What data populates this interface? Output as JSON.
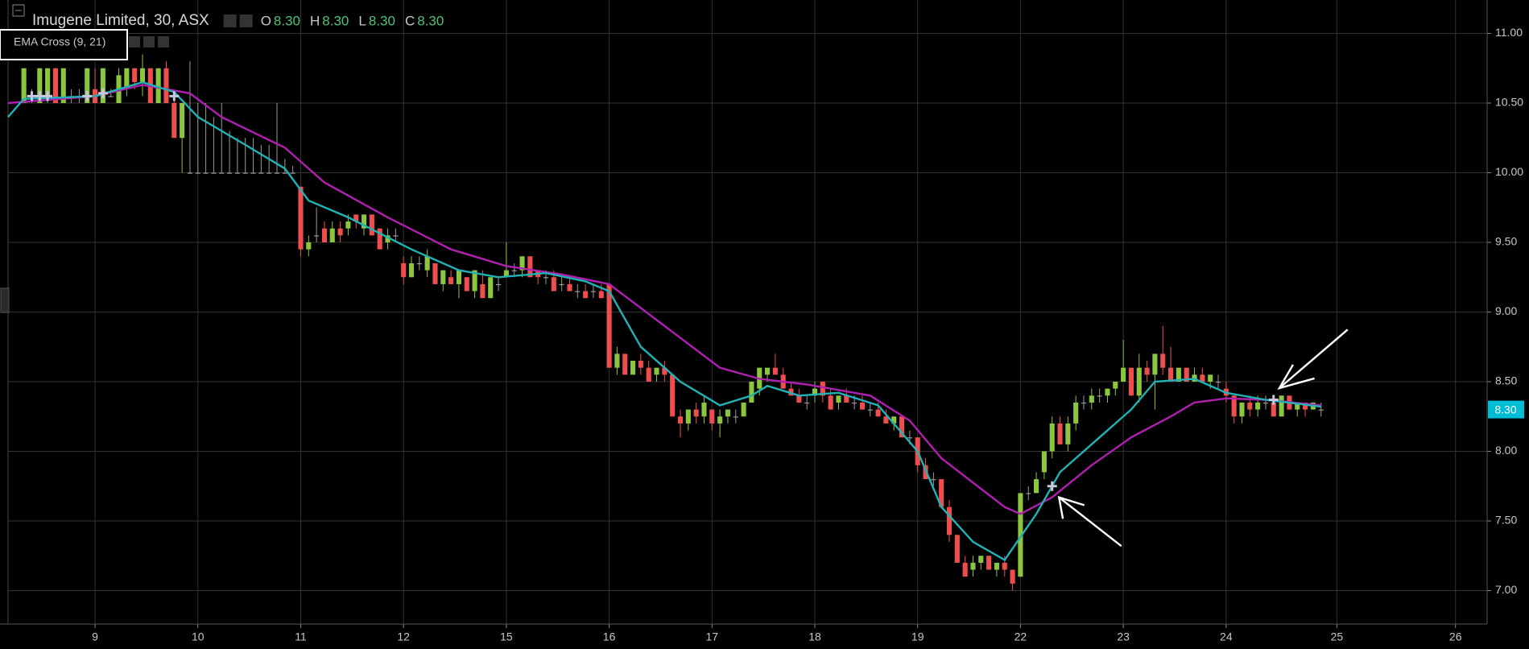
{
  "chart_data": {
    "type": "candlestick",
    "title": "Imugene Limited, 30, ASX",
    "indicator": "EMA Cross (9, 21)",
    "quote": {
      "labels": [
        "O",
        "H",
        "L",
        "C"
      ],
      "values": [
        8.3,
        8.3,
        8.3,
        8.3
      ],
      "value_labels": [
        "8.30",
        "8.30",
        "8.30",
        "8.30"
      ]
    },
    "last_price": 8.3,
    "last_price_label": "8.30",
    "up_color": "#8cc63f",
    "down_color": "#ef4e4e",
    "flat_color": "#9a9a9a",
    "xlim": [
      -11,
      176
    ],
    "ylim": [
      6.76,
      11.24
    ],
    "grid": true,
    "xticks": [
      {
        "value": 0,
        "label": "9"
      },
      {
        "value": 13,
        "label": "10"
      },
      {
        "value": 26,
        "label": "11"
      },
      {
        "value": 39,
        "label": "12"
      },
      {
        "value": 52,
        "label": "15"
      },
      {
        "value": 65,
        "label": "16"
      },
      {
        "value": 78,
        "label": "17"
      },
      {
        "value": 91,
        "label": "18"
      },
      {
        "value": 104,
        "label": "19"
      },
      {
        "value": 117,
        "label": "22"
      },
      {
        "value": 130,
        "label": "23"
      },
      {
        "value": 143,
        "label": "24"
      },
      {
        "value": 157,
        "label": "25"
      },
      {
        "value": 172,
        "label": "26"
      }
    ],
    "yticks": [
      {
        "value": 7,
        "label": "7.00"
      },
      {
        "value": 7.5,
        "label": "7.50"
      },
      {
        "value": 8,
        "label": "8.00"
      },
      {
        "value": 8.5,
        "label": "8.50"
      },
      {
        "value": 9,
        "label": "9.00"
      },
      {
        "value": 9.5,
        "label": "9.50"
      },
      {
        "value": 10,
        "label": "10.00"
      },
      {
        "value": 10.5,
        "label": "10.50"
      },
      {
        "value": 11,
        "label": "11.00"
      }
    ],
    "x": [
      -9,
      -8,
      -7,
      -6,
      -5,
      -4,
      -3,
      -2,
      -1,
      0,
      1,
      2,
      3,
      4,
      5,
      6,
      7,
      8,
      9,
      10,
      11,
      12,
      13,
      14,
      15,
      16,
      17,
      18,
      19,
      20,
      21,
      22,
      23,
      24,
      25,
      26,
      27,
      28,
      29,
      30,
      31,
      32,
      33,
      34,
      35,
      36,
      37,
      38,
      39,
      40,
      41,
      42,
      43,
      44,
      45,
      46,
      47,
      48,
      49,
      50,
      51,
      52,
      53,
      54,
      55,
      56,
      57,
      58,
      59,
      60,
      61,
      62,
      63,
      64,
      65,
      66,
      67,
      68,
      69,
      70,
      71,
      72,
      73,
      74,
      75,
      76,
      77,
      78,
      79,
      80,
      81,
      82,
      83,
      84,
      85,
      86,
      87,
      88,
      89,
      90,
      91,
      92,
      93,
      94,
      95,
      96,
      97,
      98,
      99,
      100,
      101,
      102,
      103,
      104,
      105,
      106,
      107,
      108,
      109,
      110,
      111,
      112,
      113,
      114,
      115,
      116,
      117,
      118,
      119,
      120,
      121,
      122,
      123,
      124,
      125,
      126,
      127,
      128,
      129,
      130,
      131,
      132,
      133,
      134,
      135,
      136,
      137,
      138,
      139,
      140,
      141,
      142,
      143,
      144,
      145,
      146,
      147,
      148,
      149,
      150,
      151,
      152,
      153,
      154,
      155
    ],
    "candles": [
      [
        10.5,
        10.75,
        10.5,
        10.75
      ],
      [
        10.55,
        10.6,
        10.5,
        10.55
      ],
      [
        10.5,
        10.75,
        10.5,
        10.75
      ],
      [
        10.55,
        10.75,
        10.5,
        10.75
      ],
      [
        10.75,
        10.75,
        10.5,
        10.5
      ],
      [
        10.5,
        10.75,
        10.5,
        10.75
      ],
      [
        10.55,
        10.6,
        10.5,
        10.55
      ],
      [
        10.55,
        10.6,
        10.5,
        10.55
      ],
      [
        10.5,
        10.75,
        10.5,
        10.75
      ],
      [
        10.6,
        10.75,
        10.5,
        10.5
      ],
      [
        10.5,
        10.75,
        10.5,
        10.75
      ],
      [
        10.55,
        10.6,
        10.55,
        10.55
      ],
      [
        10.5,
        10.75,
        10.5,
        10.7
      ],
      [
        10.6,
        10.75,
        10.55,
        10.75
      ],
      [
        10.75,
        10.75,
        10.6,
        10.65
      ],
      [
        10.65,
        10.85,
        10.55,
        10.75
      ],
      [
        10.75,
        10.75,
        10.5,
        10.5
      ],
      [
        10.5,
        10.75,
        10.5,
        10.75
      ],
      [
        10.75,
        10.8,
        10.5,
        10.5
      ],
      [
        10.5,
        10.55,
        10.25,
        10.25
      ],
      [
        10.25,
        10.5,
        10.0,
        10.5
      ],
      [
        10.0,
        10.8,
        10.0,
        10.0
      ],
      [
        10.0,
        10.5,
        10.0,
        10.0
      ],
      [
        10.0,
        10.5,
        10.0,
        10.0
      ],
      [
        10.0,
        10.4,
        10.0,
        10.0
      ],
      [
        10.0,
        10.5,
        10.0,
        10.0
      ],
      [
        10.0,
        10.3,
        10.0,
        10.0
      ],
      [
        10.0,
        10.25,
        10.0,
        10.0
      ],
      [
        10.0,
        10.25,
        10.0,
        10.0
      ],
      [
        10.0,
        10.25,
        10.0,
        10.0
      ],
      [
        10.0,
        10.2,
        10.0,
        10.0
      ],
      [
        10.0,
        10.2,
        10.0,
        10.0
      ],
      [
        10.0,
        10.5,
        10.0,
        10.0
      ],
      [
        10.0,
        10.1,
        10.0,
        10.0
      ],
      [
        10.0,
        10.05,
        10.0,
        10.0
      ],
      [
        9.9,
        9.9,
        9.4,
        9.45
      ],
      [
        9.45,
        9.55,
        9.4,
        9.5
      ],
      [
        9.55,
        9.75,
        9.5,
        9.55
      ],
      [
        9.6,
        9.65,
        9.5,
        9.5
      ],
      [
        9.5,
        9.65,
        9.5,
        9.6
      ],
      [
        9.6,
        9.65,
        9.5,
        9.55
      ],
      [
        9.6,
        9.7,
        9.55,
        9.65
      ],
      [
        9.7,
        9.7,
        9.6,
        9.65
      ],
      [
        9.6,
        9.7,
        9.55,
        9.7
      ],
      [
        9.7,
        9.7,
        9.55,
        9.55
      ],
      [
        9.6,
        9.6,
        9.45,
        9.45
      ],
      [
        9.5,
        9.6,
        9.45,
        9.55
      ],
      [
        9.55,
        9.6,
        9.5,
        9.55
      ],
      [
        9.35,
        9.4,
        9.2,
        9.25
      ],
      [
        9.25,
        9.4,
        9.25,
        9.35
      ],
      [
        9.35,
        9.4,
        9.3,
        9.35
      ],
      [
        9.3,
        9.45,
        9.25,
        9.4
      ],
      [
        9.35,
        9.35,
        9.2,
        9.2
      ],
      [
        9.2,
        9.3,
        9.15,
        9.3
      ],
      [
        9.25,
        9.3,
        9.2,
        9.2
      ],
      [
        9.2,
        9.3,
        9.1,
        9.3
      ],
      [
        9.25,
        9.25,
        9.15,
        9.15
      ],
      [
        9.15,
        9.3,
        9.1,
        9.3
      ],
      [
        9.2,
        9.3,
        9.1,
        9.1
      ],
      [
        9.1,
        9.25,
        9.1,
        9.25
      ],
      [
        9.2,
        9.25,
        9.15,
        9.2
      ],
      [
        9.25,
        9.5,
        9.25,
        9.3
      ],
      [
        9.3,
        9.35,
        9.25,
        9.3
      ],
      [
        9.3,
        9.4,
        9.25,
        9.4
      ],
      [
        9.4,
        9.4,
        9.25,
        9.25
      ],
      [
        9.3,
        9.3,
        9.2,
        9.25
      ],
      [
        9.25,
        9.3,
        9.2,
        9.25
      ],
      [
        9.25,
        9.3,
        9.15,
        9.15
      ],
      [
        9.2,
        9.25,
        9.15,
        9.2
      ],
      [
        9.2,
        9.25,
        9.15,
        9.15
      ],
      [
        9.15,
        9.2,
        9.1,
        9.15
      ],
      [
        9.15,
        9.2,
        9.1,
        9.1
      ],
      [
        9.15,
        9.2,
        9.1,
        9.15
      ],
      [
        9.15,
        9.2,
        9.1,
        9.1
      ],
      [
        9.2,
        9.2,
        8.6,
        8.6
      ],
      [
        8.6,
        8.75,
        8.55,
        8.7
      ],
      [
        8.7,
        8.7,
        8.55,
        8.55
      ],
      [
        8.55,
        8.65,
        8.55,
        8.65
      ],
      [
        8.65,
        8.7,
        8.55,
        8.6
      ],
      [
        8.6,
        8.65,
        8.5,
        8.5
      ],
      [
        8.55,
        8.6,
        8.5,
        8.6
      ],
      [
        8.6,
        8.65,
        8.5,
        8.55
      ],
      [
        8.55,
        8.55,
        8.25,
        8.25
      ],
      [
        8.25,
        8.3,
        8.1,
        8.2
      ],
      [
        8.2,
        8.3,
        8.15,
        8.3
      ],
      [
        8.3,
        8.35,
        8.2,
        8.25
      ],
      [
        8.25,
        8.4,
        8.2,
        8.35
      ],
      [
        8.3,
        8.3,
        8.15,
        8.2
      ],
      [
        8.2,
        8.3,
        8.1,
        8.25
      ],
      [
        8.25,
        8.3,
        8.2,
        8.3
      ],
      [
        8.25,
        8.3,
        8.2,
        8.25
      ],
      [
        8.25,
        8.35,
        8.25,
        8.35
      ],
      [
        8.35,
        8.5,
        8.35,
        8.5
      ],
      [
        8.45,
        8.6,
        8.4,
        8.6
      ],
      [
        8.55,
        8.6,
        8.5,
        8.6
      ],
      [
        8.6,
        8.7,
        8.55,
        8.55
      ],
      [
        8.55,
        8.6,
        8.45,
        8.45
      ],
      [
        8.45,
        8.5,
        8.4,
        8.4
      ],
      [
        8.4,
        8.45,
        8.35,
        8.35
      ],
      [
        8.35,
        8.4,
        8.3,
        8.35
      ],
      [
        8.4,
        8.5,
        8.35,
        8.45
      ],
      [
        8.5,
        8.5,
        8.35,
        8.4
      ],
      [
        8.4,
        8.45,
        8.3,
        8.3
      ],
      [
        8.35,
        8.4,
        8.3,
        8.4
      ],
      [
        8.4,
        8.45,
        8.35,
        8.35
      ],
      [
        8.35,
        8.4,
        8.3,
        8.35
      ],
      [
        8.35,
        8.4,
        8.3,
        8.3
      ],
      [
        8.3,
        8.35,
        8.25,
        8.3
      ],
      [
        8.3,
        8.35,
        8.25,
        8.25
      ],
      [
        8.25,
        8.3,
        8.2,
        8.2
      ],
      [
        8.2,
        8.25,
        8.15,
        8.25
      ],
      [
        8.25,
        8.25,
        8.1,
        8.1
      ],
      [
        8.1,
        8.15,
        8.05,
        8.1
      ],
      [
        8.1,
        8.1,
        7.85,
        7.9
      ],
      [
        7.9,
        7.95,
        7.8,
        7.8
      ],
      [
        7.8,
        7.85,
        7.75,
        7.8
      ],
      [
        7.8,
        7.8,
        7.6,
        7.6
      ],
      [
        7.6,
        7.65,
        7.35,
        7.4
      ],
      [
        7.4,
        7.4,
        7.2,
        7.2
      ],
      [
        7.2,
        7.25,
        7.1,
        7.1
      ],
      [
        7.15,
        7.25,
        7.1,
        7.2
      ],
      [
        7.2,
        7.25,
        7.15,
        7.25
      ],
      [
        7.25,
        7.25,
        7.15,
        7.15
      ],
      [
        7.15,
        7.2,
        7.1,
        7.2
      ],
      [
        7.2,
        7.25,
        7.1,
        7.15
      ],
      [
        7.15,
        7.15,
        7.0,
        7.05
      ],
      [
        7.1,
        7.7,
        7.1,
        7.7
      ],
      [
        7.7,
        7.75,
        7.65,
        7.7
      ],
      [
        7.7,
        7.85,
        7.7,
        7.8
      ],
      [
        7.85,
        8.0,
        7.8,
        8.0
      ],
      [
        8.0,
        8.25,
        7.95,
        8.2
      ],
      [
        8.2,
        8.25,
        8.05,
        8.05
      ],
      [
        8.05,
        8.25,
        8.0,
        8.2
      ],
      [
        8.2,
        8.4,
        8.15,
        8.35
      ],
      [
        8.35,
        8.4,
        8.3,
        8.35
      ],
      [
        8.35,
        8.45,
        8.3,
        8.4
      ],
      [
        8.4,
        8.45,
        8.35,
        8.4
      ],
      [
        8.4,
        8.45,
        8.35,
        8.45
      ],
      [
        8.45,
        8.5,
        8.4,
        8.5
      ],
      [
        8.5,
        8.8,
        8.5,
        8.6
      ],
      [
        8.6,
        8.6,
        8.4,
        8.4
      ],
      [
        8.4,
        8.7,
        8.35,
        8.6
      ],
      [
        8.6,
        8.65,
        8.5,
        8.55
      ],
      [
        8.55,
        8.7,
        8.3,
        8.7
      ],
      [
        8.7,
        8.9,
        8.55,
        8.6
      ],
      [
        8.6,
        8.75,
        8.5,
        8.5
      ],
      [
        8.5,
        8.6,
        8.5,
        8.6
      ],
      [
        8.6,
        8.6,
        8.5,
        8.5
      ],
      [
        8.5,
        8.6,
        8.5,
        8.55
      ],
      [
        8.55,
        8.6,
        8.5,
        8.5
      ],
      [
        8.5,
        8.55,
        8.45,
        8.55
      ],
      [
        8.5,
        8.55,
        8.45,
        8.5
      ],
      [
        8.45,
        8.5,
        8.35,
        8.4
      ],
      [
        8.4,
        8.4,
        8.2,
        8.25
      ],
      [
        8.25,
        8.35,
        8.2,
        8.35
      ],
      [
        8.35,
        8.4,
        8.25,
        8.3
      ],
      [
        8.3,
        8.4,
        8.25,
        8.35
      ],
      [
        8.35,
        8.4,
        8.3,
        8.35
      ],
      [
        8.35,
        8.4,
        8.25,
        8.25
      ],
      [
        8.25,
        8.4,
        8.25,
        8.4
      ],
      [
        8.4,
        8.4,
        8.3,
        8.3
      ],
      [
        8.3,
        8.35,
        8.25,
        8.35
      ],
      [
        8.35,
        8.35,
        8.25,
        8.3
      ],
      [
        8.3,
        8.35,
        8.3,
        8.35
      ],
      [
        8.3,
        8.35,
        8.25,
        8.3
      ]
    ],
    "series": [
      {
        "color": "#b01fb0",
        "x": [
          -11,
          0,
          6,
          12,
          16,
          24,
          29,
          37,
          45,
          52,
          59,
          65,
          72,
          79,
          84,
          90,
          98,
          103,
          107,
          115,
          117,
          121,
          126,
          131,
          136,
          139,
          143,
          148,
          155
        ],
        "values": [
          10.5,
          10.55,
          10.63,
          10.57,
          10.4,
          10.18,
          9.93,
          9.68,
          9.45,
          9.33,
          9.27,
          9.2,
          8.9,
          8.6,
          8.52,
          8.48,
          8.4,
          8.22,
          7.95,
          7.6,
          7.55,
          7.67,
          7.9,
          8.1,
          8.25,
          8.35,
          8.38,
          8.37,
          8.33
        ]
      },
      {
        "color": "#20b2b4",
        "x": [
          -11,
          -9,
          0,
          6,
          10,
          13,
          19,
          24,
          27,
          32,
          40,
          46,
          51,
          57,
          62,
          65,
          69,
          74,
          79,
          83,
          85,
          89,
          94,
          99,
          104,
          107,
          111,
          115,
          119,
          122,
          127,
          131,
          134,
          139,
          143,
          148,
          155
        ],
        "values": [
          10.4,
          10.53,
          10.55,
          10.65,
          10.58,
          10.4,
          10.2,
          10.03,
          9.8,
          9.68,
          9.45,
          9.3,
          9.25,
          9.28,
          9.22,
          9.15,
          8.75,
          8.5,
          8.33,
          8.4,
          8.47,
          8.4,
          8.42,
          8.33,
          8.0,
          7.6,
          7.35,
          7.22,
          7.55,
          7.85,
          8.1,
          8.3,
          8.5,
          8.52,
          8.42,
          8.37,
          8.32
        ]
      }
    ],
    "crosses": {
      "color": "#c8c8e0",
      "x": [
        -8,
        -7,
        -6,
        -1,
        1,
        10,
        121,
        149
      ],
      "values": [
        10.55,
        10.55,
        10.55,
        10.55,
        10.57,
        10.55,
        7.75,
        8.37
      ]
    }
  }
}
